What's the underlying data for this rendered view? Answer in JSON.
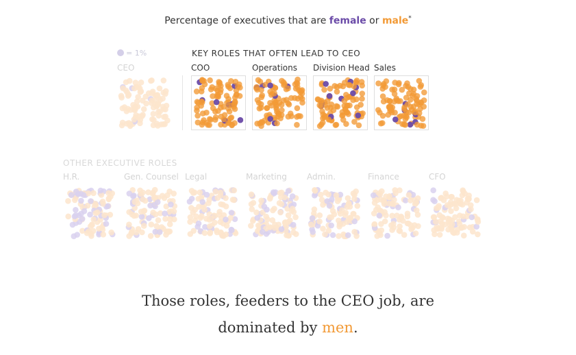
{
  "title": {
    "prefix": "Percentage of executives that are ",
    "female": "female",
    "or": " or ",
    "male": "male",
    "asterisk": "*"
  },
  "legend": {
    "label": "= 1%"
  },
  "colors": {
    "female": "#6b4ba8",
    "male": "#f29a36",
    "female_faded": "#d9d1ee",
    "male_faded": "#fde5cc"
  },
  "chart_data": {
    "type": "scatter",
    "title": "Percentage of executives that are female or male",
    "unit": "1 dot = 1%",
    "groups": [
      {
        "name": "",
        "roles": [
          {
            "label": "CEO",
            "female_pct": 4,
            "male_pct": 96,
            "highlighted": false
          }
        ]
      },
      {
        "name": "KEY ROLES THAT OFTEN LEAD TO CEO",
        "roles": [
          {
            "label": "COO",
            "female_pct": 8,
            "male_pct": 92,
            "highlighted": true
          },
          {
            "label": "Operations",
            "female_pct": 7,
            "male_pct": 93,
            "highlighted": true
          },
          {
            "label": "Division Head",
            "female_pct": 10,
            "male_pct": 90,
            "highlighted": true
          },
          {
            "label": "Sales",
            "female_pct": 6,
            "male_pct": 94,
            "highlighted": true
          }
        ]
      },
      {
        "name": "OTHER EXECUTIVE ROLES",
        "roles": [
          {
            "label": "H.R.",
            "female_pct": 45,
            "male_pct": 55,
            "highlighted": false
          },
          {
            "label": "Gen. Counsel",
            "female_pct": 25,
            "male_pct": 75,
            "highlighted": false
          },
          {
            "label": "Legal",
            "female_pct": 30,
            "male_pct": 70,
            "highlighted": false
          },
          {
            "label": "Marketing",
            "female_pct": 30,
            "male_pct": 70,
            "highlighted": false
          },
          {
            "label": "Admin.",
            "female_pct": 30,
            "male_pct": 70,
            "highlighted": false
          },
          {
            "label": "Finance",
            "female_pct": 20,
            "male_pct": 80,
            "highlighted": false
          },
          {
            "label": "CFO",
            "female_pct": 12,
            "male_pct": 88,
            "highlighted": false
          }
        ]
      }
    ]
  },
  "caption": {
    "line1": "Those roles, feeders to the CEO job, are",
    "line2_prefix": "dominated by ",
    "men": "men",
    "period": "."
  }
}
